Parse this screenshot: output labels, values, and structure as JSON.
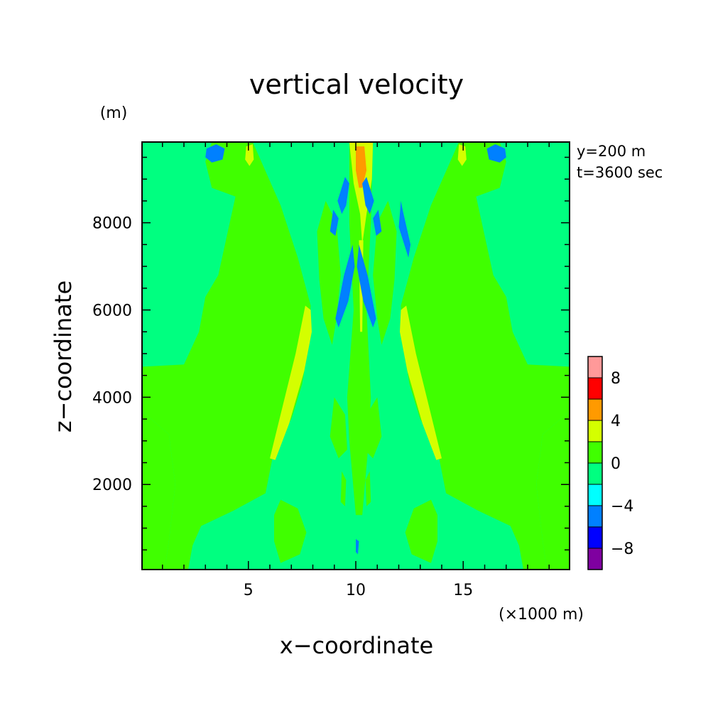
{
  "chart_data": {
    "type": "heatmap",
    "title": "vertical velocity",
    "xlabel": "x−coordinate",
    "ylabel": "z−coordinate",
    "x_unit": "(×1000 m)",
    "y_unit": "(m)",
    "annotations": [
      "y=200 m",
      "t=3600 sec"
    ],
    "xlim": [
      0.05,
      19.95
    ],
    "ylim": [
      50,
      9850
    ],
    "x_ticks": [
      5,
      10,
      15
    ],
    "x_tick_labels": [
      "5",
      "10",
      "15"
    ],
    "y_ticks": [
      2000,
      4000,
      6000,
      8000
    ],
    "y_tick_labels": [
      "2000",
      "4000",
      "6000",
      "8000"
    ],
    "grid": false,
    "colorbar": {
      "levels": [
        -10,
        -8,
        -6,
        -4,
        -2,
        0,
        2,
        4,
        6,
        8,
        10
      ],
      "tick_labels": [
        "−8",
        "−4",
        "0",
        "4",
        "8"
      ],
      "tick_values": [
        -8,
        -4,
        0,
        4,
        8
      ],
      "colors": [
        "#7f00a0",
        "#0000ff",
        "#0080ff",
        "#00ffff",
        "#00ff80",
        "#40ff00",
        "#d4ff00",
        "#ff9a00",
        "#ff0000",
        "#ff9999"
      ]
    },
    "regions": [
      {
        "name": "outer-left",
        "level": 1,
        "points": [
          [
            0.05,
            9850
          ],
          [
            0.05,
            3680
          ],
          [
            1.3,
            3150
          ],
          [
            1.6,
            2000
          ],
          [
            1.3,
            700
          ],
          [
            1.1,
            50
          ],
          [
            0.05,
            50
          ]
        ]
      },
      {
        "name": "outer-right",
        "level": 1,
        "points": [
          [
            19.95,
            9850
          ],
          [
            19.95,
            3680
          ],
          [
            18.7,
            3150
          ],
          [
            18.4,
            2000
          ],
          [
            18.7,
            700
          ],
          [
            18.9,
            50
          ],
          [
            19.95,
            50
          ]
        ]
      },
      {
        "name": "mid-left",
        "level": 1,
        "points": [
          [
            0.05,
            3680
          ],
          [
            0.05,
            4700
          ],
          [
            2.0,
            4750
          ],
          [
            2.7,
            5500
          ],
          [
            3.0,
            6300
          ],
          [
            3.6,
            6800
          ],
          [
            4.4,
            8600
          ],
          [
            3.3,
            8800
          ],
          [
            3.0,
            9400
          ],
          [
            3.3,
            9850
          ],
          [
            5.2,
            9850
          ],
          [
            6.5,
            8400
          ],
          [
            7.3,
            7200
          ],
          [
            7.9,
            6100
          ],
          [
            7.8,
            5200
          ],
          [
            7.5,
            4300
          ],
          [
            7.0,
            3500
          ],
          [
            6.2,
            2800
          ],
          [
            5.8,
            1800
          ],
          [
            4.3,
            1400
          ],
          [
            2.8,
            1050
          ],
          [
            2.4,
            600
          ],
          [
            2.2,
            50
          ],
          [
            1.1,
            50
          ],
          [
            1.3,
            700
          ],
          [
            1.6,
            2000
          ],
          [
            1.3,
            3150
          ]
        ]
      },
      {
        "name": "mid-right",
        "level": 1,
        "points": [
          [
            19.95,
            3680
          ],
          [
            19.95,
            4700
          ],
          [
            18.0,
            4750
          ],
          [
            17.3,
            5500
          ],
          [
            17.0,
            6300
          ],
          [
            16.4,
            6800
          ],
          [
            15.6,
            8600
          ],
          [
            16.7,
            8800
          ],
          [
            17.0,
            9400
          ],
          [
            16.7,
            9850
          ],
          [
            14.8,
            9850
          ],
          [
            13.5,
            8400
          ],
          [
            12.7,
            7200
          ],
          [
            12.1,
            6100
          ],
          [
            12.2,
            5200
          ],
          [
            12.5,
            4300
          ],
          [
            13.0,
            3500
          ],
          [
            13.8,
            2800
          ],
          [
            14.2,
            1800
          ],
          [
            15.7,
            1400
          ],
          [
            17.2,
            1050
          ],
          [
            17.6,
            600
          ],
          [
            17.8,
            50
          ],
          [
            18.9,
            50
          ],
          [
            18.7,
            700
          ],
          [
            18.4,
            2000
          ],
          [
            18.7,
            3150
          ]
        ]
      },
      {
        "name": "blob-left-bottom",
        "level": 1,
        "points": [
          [
            6.5,
            1650
          ],
          [
            7.3,
            1450
          ],
          [
            7.7,
            900
          ],
          [
            7.4,
            400
          ],
          [
            6.5,
            200
          ],
          [
            6.2,
            700
          ],
          [
            6.2,
            1300
          ]
        ]
      },
      {
        "name": "blob-right-bottom",
        "level": 1,
        "points": [
          [
            13.5,
            1650
          ],
          [
            12.7,
            1450
          ],
          [
            12.3,
            900
          ],
          [
            12.6,
            400
          ],
          [
            13.5,
            200
          ],
          [
            13.8,
            700
          ],
          [
            13.8,
            1300
          ]
        ]
      },
      {
        "name": "column-center",
        "level": 1,
        "points": [
          [
            9.7,
            9850
          ],
          [
            10.8,
            9850
          ],
          [
            10.7,
            8000
          ],
          [
            10.5,
            6000
          ],
          [
            10.7,
            4000
          ],
          [
            10.6,
            3000
          ],
          [
            10.3,
            1300
          ],
          [
            10.0,
            1300
          ],
          [
            9.7,
            3000
          ],
          [
            9.6,
            4000
          ],
          [
            9.9,
            6000
          ],
          [
            9.7,
            8000
          ]
        ]
      },
      {
        "name": "inner-left-upper",
        "level": 1,
        "points": [
          [
            8.6,
            8500
          ],
          [
            9.1,
            8000
          ],
          [
            9.3,
            6800
          ],
          [
            9.1,
            5800
          ],
          [
            8.9,
            5200
          ],
          [
            8.5,
            5800
          ],
          [
            8.3,
            6700
          ],
          [
            8.2,
            7800
          ]
        ]
      },
      {
        "name": "inner-right-upper",
        "level": 1,
        "points": [
          [
            11.5,
            8500
          ],
          [
            11.0,
            8000
          ],
          [
            10.8,
            6800
          ],
          [
            11.0,
            5800
          ],
          [
            11.2,
            5200
          ],
          [
            11.6,
            5800
          ],
          [
            11.8,
            6700
          ],
          [
            11.9,
            7800
          ]
        ]
      },
      {
        "name": "inner-left-lower",
        "level": 1,
        "points": [
          [
            9.0,
            4000
          ],
          [
            9.5,
            3600
          ],
          [
            9.6,
            2800
          ],
          [
            9.2,
            2600
          ],
          [
            8.8,
            3100
          ]
        ]
      },
      {
        "name": "inner-right-lower",
        "level": 1,
        "points": [
          [
            11.0,
            4000
          ],
          [
            10.5,
            3600
          ],
          [
            10.4,
            2800
          ],
          [
            10.8,
            2600
          ],
          [
            11.2,
            3100
          ]
        ]
      },
      {
        "name": "thin-left-low",
        "level": 1,
        "points": [
          [
            9.35,
            2300
          ],
          [
            9.55,
            2100
          ],
          [
            9.5,
            1500
          ],
          [
            9.3,
            1600
          ]
        ]
      },
      {
        "name": "thin-right-low",
        "level": 1,
        "points": [
          [
            10.65,
            2300
          ],
          [
            10.45,
            2100
          ],
          [
            10.5,
            1500
          ],
          [
            10.7,
            1600
          ]
        ]
      },
      {
        "name": "updraft-left",
        "level": 2,
        "points": [
          [
            7.9,
            6000
          ],
          [
            7.65,
            6100
          ],
          [
            7.2,
            5000
          ],
          [
            6.6,
            3800
          ],
          [
            6.0,
            2600
          ],
          [
            6.25,
            2560
          ],
          [
            6.9,
            3400
          ],
          [
            7.6,
            4600
          ],
          [
            7.95,
            5500
          ]
        ]
      },
      {
        "name": "updraft-right",
        "level": 2,
        "points": [
          [
            12.1,
            6000
          ],
          [
            12.35,
            6100
          ],
          [
            12.8,
            5000
          ],
          [
            13.4,
            3800
          ],
          [
            14.0,
            2600
          ],
          [
            13.75,
            2560
          ],
          [
            13.1,
            3400
          ],
          [
            12.4,
            4600
          ],
          [
            12.05,
            5500
          ]
        ]
      },
      {
        "name": "center-yellow",
        "level": 2,
        "points": [
          [
            9.7,
            9850
          ],
          [
            10.8,
            9850
          ],
          [
            10.75,
            9000
          ],
          [
            10.5,
            8200
          ],
          [
            10.3,
            7500
          ],
          [
            10.2,
            8200
          ],
          [
            9.9,
            8900
          ]
        ]
      },
      {
        "name": "center-yellow-stem",
        "level": 2,
        "points": [
          [
            10.15,
            7600
          ],
          [
            10.35,
            7600
          ],
          [
            10.3,
            5500
          ],
          [
            10.2,
            5500
          ]
        ]
      },
      {
        "name": "top-yellow-left",
        "level": 2,
        "points": [
          [
            4.9,
            9750
          ],
          [
            5.2,
            9800
          ],
          [
            5.25,
            9450
          ],
          [
            5.05,
            9300
          ],
          [
            4.85,
            9450
          ]
        ]
      },
      {
        "name": "top-yellow-right",
        "level": 2,
        "points": [
          [
            15.1,
            9750
          ],
          [
            14.8,
            9800
          ],
          [
            14.75,
            9450
          ],
          [
            14.95,
            9300
          ],
          [
            15.15,
            9450
          ]
        ]
      },
      {
        "name": "center-orange",
        "level": 3,
        "points": [
          [
            10.0,
            9750
          ],
          [
            10.4,
            9750
          ],
          [
            10.5,
            9200
          ],
          [
            10.3,
            8800
          ],
          [
            10.15,
            8800
          ],
          [
            10.0,
            9200
          ]
        ]
      },
      {
        "name": "top-cyan-left",
        "level": -2,
        "points": [
          [
            3.05,
            9700
          ],
          [
            3.5,
            9800
          ],
          [
            3.9,
            9700
          ],
          [
            3.8,
            9450
          ],
          [
            3.3,
            9380
          ],
          [
            3.0,
            9500
          ]
        ]
      },
      {
        "name": "top-cyan-right",
        "level": -2,
        "points": [
          [
            16.95,
            9700
          ],
          [
            16.5,
            9800
          ],
          [
            16.1,
            9700
          ],
          [
            16.2,
            9450
          ],
          [
            16.7,
            9380
          ],
          [
            17.0,
            9500
          ]
        ]
      },
      {
        "name": "cyan-l1",
        "level": -2,
        "points": [
          [
            9.5,
            9050
          ],
          [
            9.7,
            8900
          ],
          [
            9.55,
            8400
          ],
          [
            9.35,
            8200
          ],
          [
            9.15,
            8500
          ]
        ]
      },
      {
        "name": "cyan-l2",
        "level": -2,
        "points": [
          [
            8.95,
            8300
          ],
          [
            9.2,
            8100
          ],
          [
            9.05,
            7700
          ],
          [
            8.8,
            7800
          ]
        ]
      },
      {
        "name": "cyan-l3",
        "level": -2,
        "points": [
          [
            9.85,
            7500
          ],
          [
            9.95,
            7000
          ],
          [
            9.65,
            6200
          ],
          [
            9.2,
            5600
          ],
          [
            9.05,
            5800
          ],
          [
            9.45,
            6800
          ]
        ]
      },
      {
        "name": "cyan-r1",
        "level": -2,
        "points": [
          [
            10.5,
            9050
          ],
          [
            10.3,
            8900
          ],
          [
            10.45,
            8400
          ],
          [
            10.65,
            8200
          ],
          [
            10.85,
            8500
          ]
        ]
      },
      {
        "name": "cyan-r2",
        "level": -2,
        "points": [
          [
            11.05,
            8300
          ],
          [
            10.8,
            8100
          ],
          [
            10.95,
            7700
          ],
          [
            11.2,
            7800
          ]
        ]
      },
      {
        "name": "cyan-r3",
        "level": -2,
        "points": [
          [
            10.15,
            7500
          ],
          [
            10.05,
            7000
          ],
          [
            10.35,
            6200
          ],
          [
            10.8,
            5600
          ],
          [
            10.95,
            5800
          ],
          [
            10.55,
            6800
          ]
        ]
      },
      {
        "name": "cyan-r4",
        "level": -2,
        "points": [
          [
            12.1,
            8500
          ],
          [
            12.2,
            8250
          ],
          [
            12.55,
            7500
          ],
          [
            12.45,
            7200
          ],
          [
            12.0,
            7900
          ]
        ]
      },
      {
        "name": "cyan-bottom",
        "level": -2,
        "points": [
          [
            10.0,
            750
          ],
          [
            10.15,
            700
          ],
          [
            10.1,
            400
          ],
          [
            10.0,
            450
          ]
        ]
      }
    ]
  }
}
